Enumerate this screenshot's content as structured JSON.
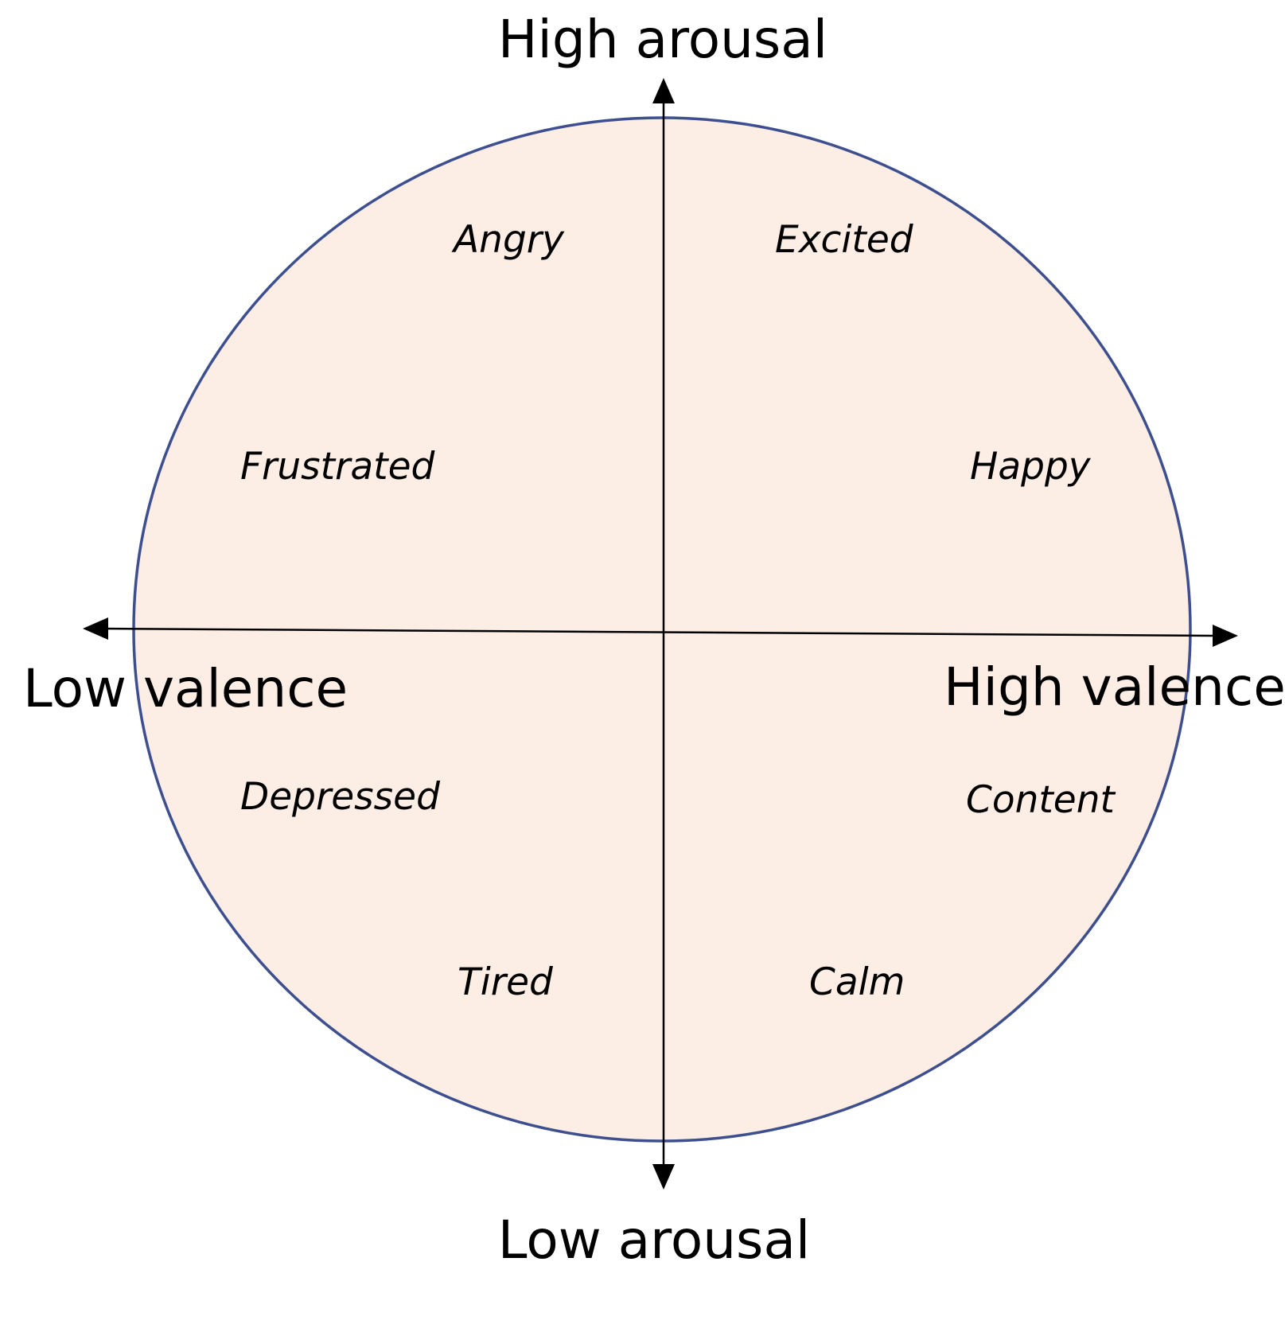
{
  "axes": {
    "top": "High arousal",
    "bottom": "Low arousal",
    "left": "Low valence",
    "right": "High valence"
  },
  "emotions": [
    {
      "label": "Angry",
      "quadrant": "high-arousal-low-valence"
    },
    {
      "label": "Excited",
      "quadrant": "high-arousal-high-valence"
    },
    {
      "label": "Frustrated",
      "quadrant": "high-arousal-low-valence"
    },
    {
      "label": "Happy",
      "quadrant": "high-arousal-high-valence"
    },
    {
      "label": "Depressed",
      "quadrant": "low-arousal-low-valence"
    },
    {
      "label": "Content",
      "quadrant": "low-arousal-high-valence"
    },
    {
      "label": "Tired",
      "quadrant": "low-arousal-low-valence"
    },
    {
      "label": "Calm",
      "quadrant": "low-arousal-high-valence"
    }
  ],
  "colors": {
    "circle_fill": "#fcede5",
    "circle_stroke": "#3d4f8e",
    "axis": "#000000"
  }
}
